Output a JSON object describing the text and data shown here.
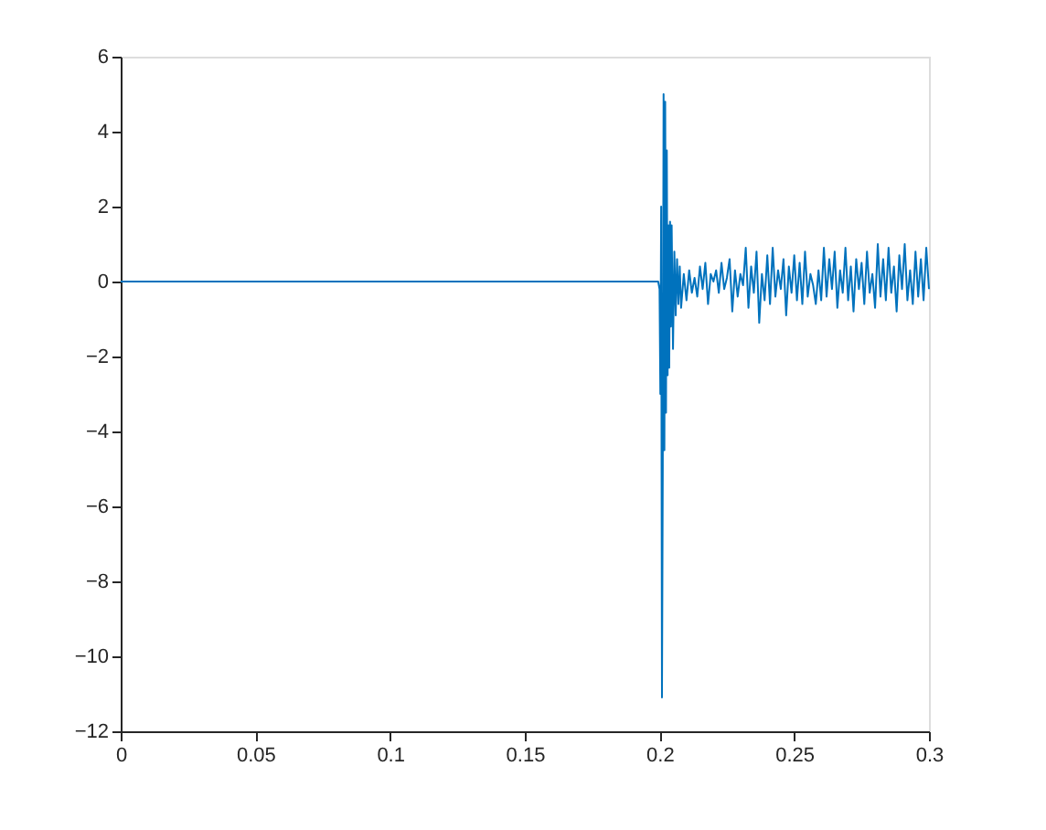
{
  "chart_data": {
    "type": "line",
    "xlim": [
      0,
      0.3
    ],
    "ylim": [
      -12,
      6
    ],
    "xticks": [
      0,
      0.05,
      0.1,
      0.15,
      0.2,
      0.25,
      0.3
    ],
    "yticks": [
      -12,
      -10,
      -8,
      -6,
      -4,
      -2,
      0,
      2,
      4,
      6
    ],
    "grid": false,
    "series": [
      {
        "color": "#0072bd",
        "x": [
          0,
          0.1995,
          0.2,
          0.2003,
          0.2006,
          0.2009,
          0.2012,
          0.2015,
          0.2018,
          0.2021,
          0.2024,
          0.2027,
          0.203,
          0.2033,
          0.2036,
          0.2039,
          0.2042,
          0.2045,
          0.205,
          0.2055,
          0.206,
          0.2065,
          0.207,
          0.2075,
          0.208,
          0.209,
          0.21,
          0.211,
          0.212,
          0.213,
          0.214,
          0.215,
          0.216,
          0.217,
          0.218,
          0.219,
          0.22,
          0.221,
          0.222,
          0.223,
          0.224,
          0.225,
          0.226,
          0.227,
          0.228,
          0.229,
          0.23,
          0.231,
          0.232,
          0.233,
          0.234,
          0.235,
          0.236,
          0.237,
          0.238,
          0.239,
          0.24,
          0.241,
          0.242,
          0.243,
          0.244,
          0.245,
          0.246,
          0.247,
          0.248,
          0.249,
          0.25,
          0.251,
          0.252,
          0.253,
          0.254,
          0.255,
          0.256,
          0.257,
          0.258,
          0.259,
          0.26,
          0.261,
          0.262,
          0.263,
          0.264,
          0.265,
          0.266,
          0.267,
          0.268,
          0.269,
          0.27,
          0.271,
          0.272,
          0.273,
          0.274,
          0.275,
          0.276,
          0.277,
          0.278,
          0.279,
          0.28,
          0.281,
          0.282,
          0.283,
          0.284,
          0.285,
          0.286,
          0.287,
          0.288,
          0.289,
          0.29,
          0.291,
          0.292,
          0.293,
          0.294,
          0.295,
          0.296,
          0.297,
          0.298,
          0.299,
          0.3
        ],
        "values": [
          0,
          0,
          -0.2,
          -3,
          2,
          -11.1,
          -5,
          5,
          -4.5,
          4.8,
          -3.5,
          3.5,
          -2.5,
          1.5,
          -2.3,
          1.6,
          -1.2,
          1.5,
          -1.8,
          0.8,
          -0.9,
          0.6,
          -0.6,
          0.4,
          -0.7,
          0.2,
          -0.5,
          0.3,
          -0.3,
          0.1,
          -0.4,
          0.4,
          -0.2,
          0.5,
          -0.6,
          0.2,
          0,
          0.3,
          -0.3,
          0.5,
          -0.2,
          0.1,
          0.6,
          -0.8,
          0.3,
          -0.4,
          0.2,
          -0.1,
          0.9,
          -0.7,
          0.4,
          -0.3,
          0.8,
          -1.1,
          0.2,
          -0.5,
          0.7,
          -0.6,
          0.9,
          -0.4,
          0.3,
          -0.2,
          0.6,
          -0.9,
          0.4,
          -0.3,
          0.7,
          -0.5,
          0.5,
          -0.6,
          0.8,
          -0.4,
          0.2,
          -0.1,
          -0.6,
          0.3,
          -0.5,
          0.9,
          -0.4,
          0.6,
          -0.2,
          0.8,
          -0.7,
          0.3,
          -0.3,
          0.9,
          -0.5,
          0.4,
          -0.8,
          0.6,
          -0.2,
          0.5,
          -0.6,
          0.8,
          -0.3,
          0.2,
          -0.7,
          1,
          -0.4,
          0.6,
          -0.5,
          0.9,
          -0.3,
          0.4,
          -0.8,
          0.7,
          -0.2,
          1,
          -0.5,
          0.3,
          -0.6,
          0.8,
          -0.4,
          0.6,
          -0.5,
          0.9,
          -0.2
        ]
      }
    ]
  }
}
